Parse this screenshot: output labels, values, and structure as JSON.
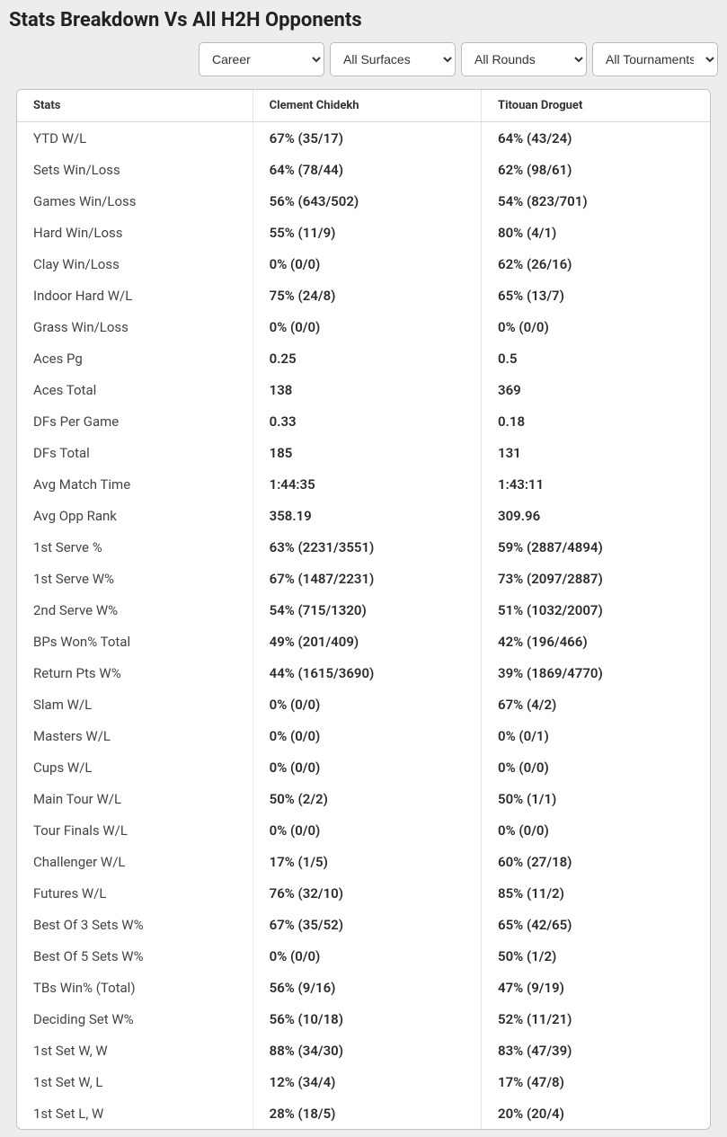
{
  "title": "Stats Breakdown Vs All H2H Opponents",
  "filters": {
    "career": "Career",
    "surface": "All Surfaces",
    "round": "All Rounds",
    "tournament": "All Tournaments"
  },
  "table": {
    "columns": [
      "Stats",
      "Clement Chidekh",
      "Titouan Droguet"
    ],
    "rows": [
      [
        "YTD W/L",
        "67% (35/17)",
        "64% (43/24)"
      ],
      [
        "Sets Win/Loss",
        "64% (78/44)",
        "62% (98/61)"
      ],
      [
        "Games Win/Loss",
        "56% (643/502)",
        "54% (823/701)"
      ],
      [
        "Hard Win/Loss",
        "55% (11/9)",
        "80% (4/1)"
      ],
      [
        "Clay Win/Loss",
        "0% (0/0)",
        "62% (26/16)"
      ],
      [
        "Indoor Hard W/L",
        "75% (24/8)",
        "65% (13/7)"
      ],
      [
        "Grass Win/Loss",
        "0% (0/0)",
        "0% (0/0)"
      ],
      [
        "Aces Pg",
        "0.25",
        "0.5"
      ],
      [
        "Aces Total",
        "138",
        "369"
      ],
      [
        "DFs Per Game",
        "0.33",
        "0.18"
      ],
      [
        "DFs Total",
        "185",
        "131"
      ],
      [
        "Avg Match Time",
        "1:44:35",
        "1:43:11"
      ],
      [
        "Avg Opp Rank",
        "358.19",
        "309.96"
      ],
      [
        "1st Serve %",
        "63% (2231/3551)",
        "59% (2887/4894)"
      ],
      [
        "1st Serve W%",
        "67% (1487/2231)",
        "73% (2097/2887)"
      ],
      [
        "2nd Serve W%",
        "54% (715/1320)",
        "51% (1032/2007)"
      ],
      [
        "BPs Won% Total",
        "49% (201/409)",
        "42% (196/466)"
      ],
      [
        "Return Pts W%",
        "44% (1615/3690)",
        "39% (1869/4770)"
      ],
      [
        "Slam W/L",
        "0% (0/0)",
        "67% (4/2)"
      ],
      [
        "Masters W/L",
        "0% (0/0)",
        "0% (0/1)"
      ],
      [
        "Cups W/L",
        "0% (0/0)",
        "0% (0/0)"
      ],
      [
        "Main Tour W/L",
        "50% (2/2)",
        "50% (1/1)"
      ],
      [
        "Tour Finals W/L",
        "0% (0/0)",
        "0% (0/0)"
      ],
      [
        "Challenger W/L",
        "17% (1/5)",
        "60% (27/18)"
      ],
      [
        "Futures W/L",
        "76% (32/10)",
        "85% (11/2)"
      ],
      [
        "Best Of 3 Sets W%",
        "67% (35/52)",
        "65% (42/65)"
      ],
      [
        "Best Of 5 Sets W%",
        "0% (0/0)",
        "50% (1/2)"
      ],
      [
        "TBs Win% (Total)",
        "56% (9/16)",
        "47% (9/19)"
      ],
      [
        "Deciding Set W%",
        "56% (10/18)",
        "52% (11/21)"
      ],
      [
        "1st Set W, W",
        "88% (34/30)",
        "83% (47/39)"
      ],
      [
        "1st Set W, L",
        "12% (34/4)",
        "17% (47/8)"
      ],
      [
        "1st Set L, W",
        "28% (18/5)",
        "20% (20/4)"
      ]
    ]
  }
}
